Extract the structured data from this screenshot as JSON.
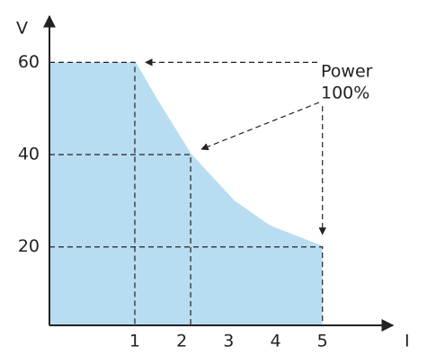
{
  "chart_data": {
    "type": "area",
    "x": [
      1,
      1.48,
      2.19,
      3.11,
      3.87,
      5
    ],
    "values": [
      60,
      51.6,
      40,
      29.9,
      24.5,
      20
    ],
    "color": "#b8ddf0",
    "xlabel": "I",
    "ylabel": "V",
    "xlim": [
      -0.82,
      6.5
    ],
    "ylim": [
      3,
      70
    ],
    "xticks": [
      1,
      2,
      3,
      4,
      5
    ],
    "yticks": [
      20,
      40,
      60
    ],
    "annotation": [
      "Power",
      "100%"
    ]
  }
}
